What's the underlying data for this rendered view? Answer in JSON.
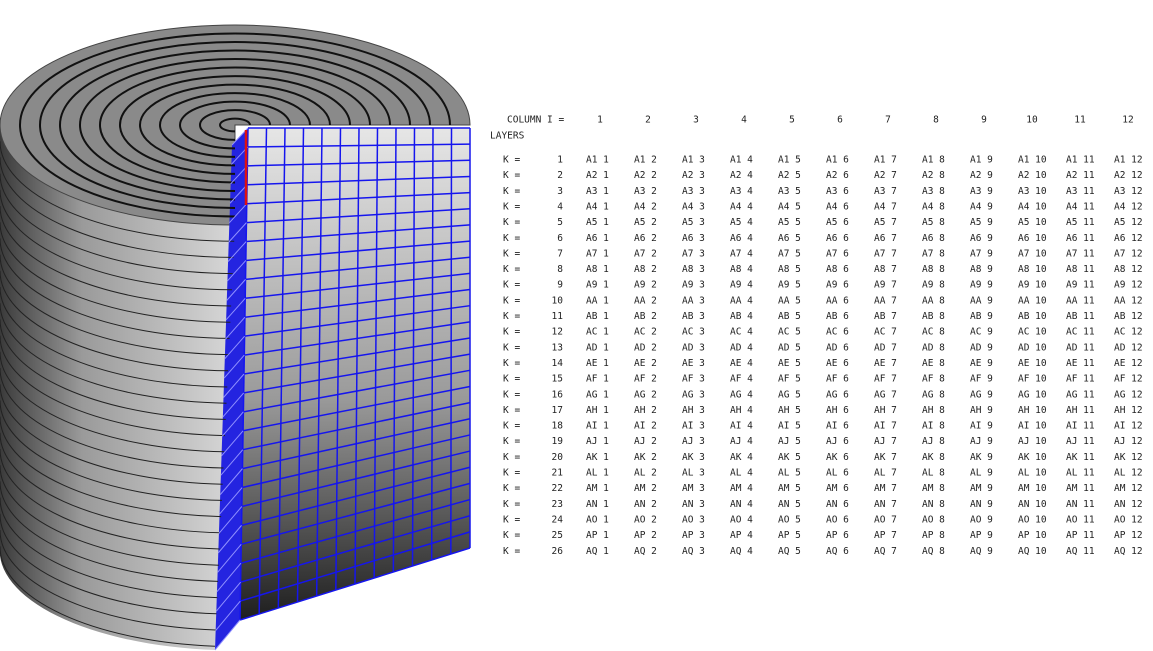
{
  "table": {
    "header": "COLUMN I =",
    "columns": [
      "1",
      "2",
      "3",
      "4",
      "5",
      "6",
      "7",
      "8",
      "9",
      "10",
      "11",
      "12"
    ],
    "layers_label": "LAYERS",
    "rows": [
      {
        "k": "K =",
        "n": "1",
        "cells": [
          "A1 1",
          "A1 2",
          "A1 3",
          "A1 4",
          "A1 5",
          "A1 6",
          "A1 7",
          "A1 8",
          "A1 9",
          "A1 10",
          "A1 11",
          "A1 12"
        ]
      },
      {
        "k": "K =",
        "n": "2",
        "cells": [
          "A2 1",
          "A2 2",
          "A2 3",
          "A2 4",
          "A2 5",
          "A2 6",
          "A2 7",
          "A2 8",
          "A2 9",
          "A2 10",
          "A2 11",
          "A2 12"
        ]
      },
      {
        "k": "K =",
        "n": "3",
        "cells": [
          "A3 1",
          "A3 2",
          "A3 3",
          "A3 4",
          "A3 5",
          "A3 6",
          "A3 7",
          "A3 8",
          "A3 9",
          "A3 10",
          "A3 11",
          "A3 12"
        ]
      },
      {
        "k": "K =",
        "n": "4",
        "cells": [
          "A4 1",
          "A4 2",
          "A4 3",
          "A4 4",
          "A4 5",
          "A4 6",
          "A4 7",
          "A4 8",
          "A4 9",
          "A4 10",
          "A4 11",
          "A4 12"
        ]
      },
      {
        "k": "K =",
        "n": "5",
        "cells": [
          "A5 1",
          "A5 2",
          "A5 3",
          "A5 4",
          "A5 5",
          "A5 6",
          "A5 7",
          "A5 8",
          "A5 9",
          "A5 10",
          "A5 11",
          "A5 12"
        ]
      },
      {
        "k": "K =",
        "n": "6",
        "cells": [
          "A6 1",
          "A6 2",
          "A6 3",
          "A6 4",
          "A6 5",
          "A6 6",
          "A6 7",
          "A6 8",
          "A6 9",
          "A6 10",
          "A6 11",
          "A6 12"
        ]
      },
      {
        "k": "K =",
        "n": "7",
        "cells": [
          "A7 1",
          "A7 2",
          "A7 3",
          "A7 4",
          "A7 5",
          "A7 6",
          "A7 7",
          "A7 8",
          "A7 9",
          "A7 10",
          "A7 11",
          "A7 12"
        ]
      },
      {
        "k": "K =",
        "n": "8",
        "cells": [
          "A8 1",
          "A8 2",
          "A8 3",
          "A8 4",
          "A8 5",
          "A8 6",
          "A8 7",
          "A8 8",
          "A8 9",
          "A8 10",
          "A8 11",
          "A8 12"
        ]
      },
      {
        "k": "K =",
        "n": "9",
        "cells": [
          "A9 1",
          "A9 2",
          "A9 3",
          "A9 4",
          "A9 5",
          "A9 6",
          "A9 7",
          "A9 8",
          "A9 9",
          "A9 10",
          "A9 11",
          "A9 12"
        ]
      },
      {
        "k": "K =",
        "n": "10",
        "cells": [
          "AA 1",
          "AA 2",
          "AA 3",
          "AA 4",
          "AA 5",
          "AA 6",
          "AA 7",
          "AA 8",
          "AA 9",
          "AA 10",
          "AA 11",
          "AA 12"
        ]
      },
      {
        "k": "K =",
        "n": "11",
        "cells": [
          "AB 1",
          "AB 2",
          "AB 3",
          "AB 4",
          "AB 5",
          "AB 6",
          "AB 7",
          "AB 8",
          "AB 9",
          "AB 10",
          "AB 11",
          "AB 12"
        ]
      },
      {
        "k": "K =",
        "n": "12",
        "cells": [
          "AC 1",
          "AC 2",
          "AC 3",
          "AC 4",
          "AC 5",
          "AC 6",
          "AC 7",
          "AC 8",
          "AC 9",
          "AC 10",
          "AC 11",
          "AC 12"
        ]
      },
      {
        "k": "K =",
        "n": "13",
        "cells": [
          "AD 1",
          "AD 2",
          "AD 3",
          "AD 4",
          "AD 5",
          "AD 6",
          "AD 7",
          "AD 8",
          "AD 9",
          "AD 10",
          "AD 11",
          "AD 12"
        ]
      },
      {
        "k": "K =",
        "n": "14",
        "cells": [
          "AE 1",
          "AE 2",
          "AE 3",
          "AE 4",
          "AE 5",
          "AE 6",
          "AE 7",
          "AE 8",
          "AE 9",
          "AE 10",
          "AE 11",
          "AE 12"
        ]
      },
      {
        "k": "K =",
        "n": "15",
        "cells": [
          "AF 1",
          "AF 2",
          "AF 3",
          "AF 4",
          "AF 5",
          "AF 6",
          "AF 7",
          "AF 8",
          "AF 9",
          "AF 10",
          "AF 11",
          "AF 12"
        ]
      },
      {
        "k": "K =",
        "n": "16",
        "cells": [
          "AG 1",
          "AG 2",
          "AG 3",
          "AG 4",
          "AG 5",
          "AG 6",
          "AG 7",
          "AG 8",
          "AG 9",
          "AG 10",
          "AG 11",
          "AG 12"
        ]
      },
      {
        "k": "K =",
        "n": "17",
        "cells": [
          "AH 1",
          "AH 2",
          "AH 3",
          "AH 4",
          "AH 5",
          "AH 6",
          "AH 7",
          "AH 8",
          "AH 9",
          "AH 10",
          "AH 11",
          "AH 12"
        ]
      },
      {
        "k": "K =",
        "n": "18",
        "cells": [
          "AI 1",
          "AI 2",
          "AI 3",
          "AI 4",
          "AI 5",
          "AI 6",
          "AI 7",
          "AI 8",
          "AI 9",
          "AI 10",
          "AI 11",
          "AI 12"
        ]
      },
      {
        "k": "K =",
        "n": "19",
        "cells": [
          "AJ 1",
          "AJ 2",
          "AJ 3",
          "AJ 4",
          "AJ 5",
          "AJ 6",
          "AJ 7",
          "AJ 8",
          "AJ 9",
          "AJ 10",
          "AJ 11",
          "AJ 12"
        ]
      },
      {
        "k": "K =",
        "n": "20",
        "cells": [
          "AK 1",
          "AK 2",
          "AK 3",
          "AK 4",
          "AK 5",
          "AK 6",
          "AK 7",
          "AK 8",
          "AK 9",
          "AK 10",
          "AK 11",
          "AK 12"
        ]
      },
      {
        "k": "K =",
        "n": "21",
        "cells": [
          "AL 1",
          "AL 2",
          "AL 3",
          "AL 4",
          "AL 5",
          "AL 6",
          "AL 7",
          "AL 8",
          "AL 9",
          "AL 10",
          "AL 11",
          "AL 12"
        ]
      },
      {
        "k": "K =",
        "n": "22",
        "cells": [
          "AM 1",
          "AM 2",
          "AM 3",
          "AM 4",
          "AM 5",
          "AM 6",
          "AM 7",
          "AM 8",
          "AM 9",
          "AM 10",
          "AM 11",
          "AM 12"
        ]
      },
      {
        "k": "K =",
        "n": "23",
        "cells": [
          "AN 1",
          "AN 2",
          "AN 3",
          "AN 4",
          "AN 5",
          "AN 6",
          "AN 7",
          "AN 8",
          "AN 9",
          "AN 10",
          "AN 11",
          "AN 12"
        ]
      },
      {
        "k": "K =",
        "n": "24",
        "cells": [
          "AO 1",
          "AO 2",
          "AO 3",
          "AO 4",
          "AO 5",
          "AO 6",
          "AO 7",
          "AO 8",
          "AO 9",
          "AO 10",
          "AO 11",
          "AO 12"
        ]
      },
      {
        "k": "K =",
        "n": "25",
        "cells": [
          "AP 1",
          "AP 2",
          "AP 3",
          "AP 4",
          "AP 5",
          "AP 6",
          "AP 7",
          "AP 8",
          "AP 9",
          "AP 10",
          "AP 11",
          "AP 12"
        ]
      },
      {
        "k": "K =",
        "n": "26",
        "cells": [
          "AQ 1",
          "AQ 2",
          "AQ 3",
          "AQ 4",
          "AQ 5",
          "AQ 6",
          "AQ 7",
          "AQ 8",
          "AQ 9",
          "AQ 10",
          "AQ 11",
          "AQ 12"
        ]
      }
    ]
  }
}
